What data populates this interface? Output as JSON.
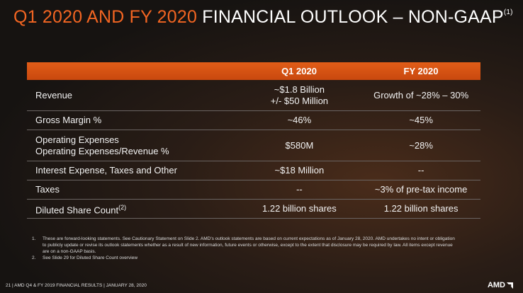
{
  "title": {
    "accent": "Q1 2020 AND FY 2020",
    "rest": "FINANCIAL OUTLOOK – NON-GAAP",
    "footnote_ref": "(1)"
  },
  "table": {
    "headers": [
      "",
      "Q1 2020",
      "FY 2020"
    ],
    "rows": [
      {
        "label": [
          "Revenue"
        ],
        "q1": [
          "~$1.8 Billion",
          "+/- $50 Million"
        ],
        "fy": [
          "Growth of ~28% – 30%"
        ]
      },
      {
        "label": [
          "Gross Margin %"
        ],
        "q1": [
          "~46%"
        ],
        "fy": [
          "~45%"
        ]
      },
      {
        "label": [
          "Operating Expenses",
          "Operating Expenses/Revenue %"
        ],
        "q1": [
          "$580M"
        ],
        "fy": [
          "~28%"
        ]
      },
      {
        "label": [
          "Interest Expense, Taxes and Other"
        ],
        "q1": [
          "~$18 Million"
        ],
        "fy": [
          "--"
        ]
      },
      {
        "label": [
          "Taxes"
        ],
        "q1": [
          "--"
        ],
        "fy": [
          "~3% of pre-tax income"
        ]
      },
      {
        "label": [
          "Diluted Share Count"
        ],
        "label_sup": "(2)",
        "q1": [
          "1.22 billion shares"
        ],
        "fy": [
          "1.22 billion shares"
        ]
      }
    ]
  },
  "notes": [
    {
      "num": "1.",
      "text": "These are forward-looking statements.  See Cautionary Statement on Slide 2. AMD's outlook statements are based on current expectations as of January 28, 2020.  AMD undertakes no intent or obligation to publicly update or revise its outlook statements whether as a result of new information, future events or otherwise, except to the extent that disclosure may be required by law.  All items except revenue are on a non-GAAP basis."
    },
    {
      "num": "2.",
      "text": "See Slide 29 for Diluted Share Count overview"
    }
  ],
  "footer": "21 | AMD Q4 & FY 2019 FINANCIAL RESULTS | JANUARY 28, 2020",
  "logo": "AMD"
}
